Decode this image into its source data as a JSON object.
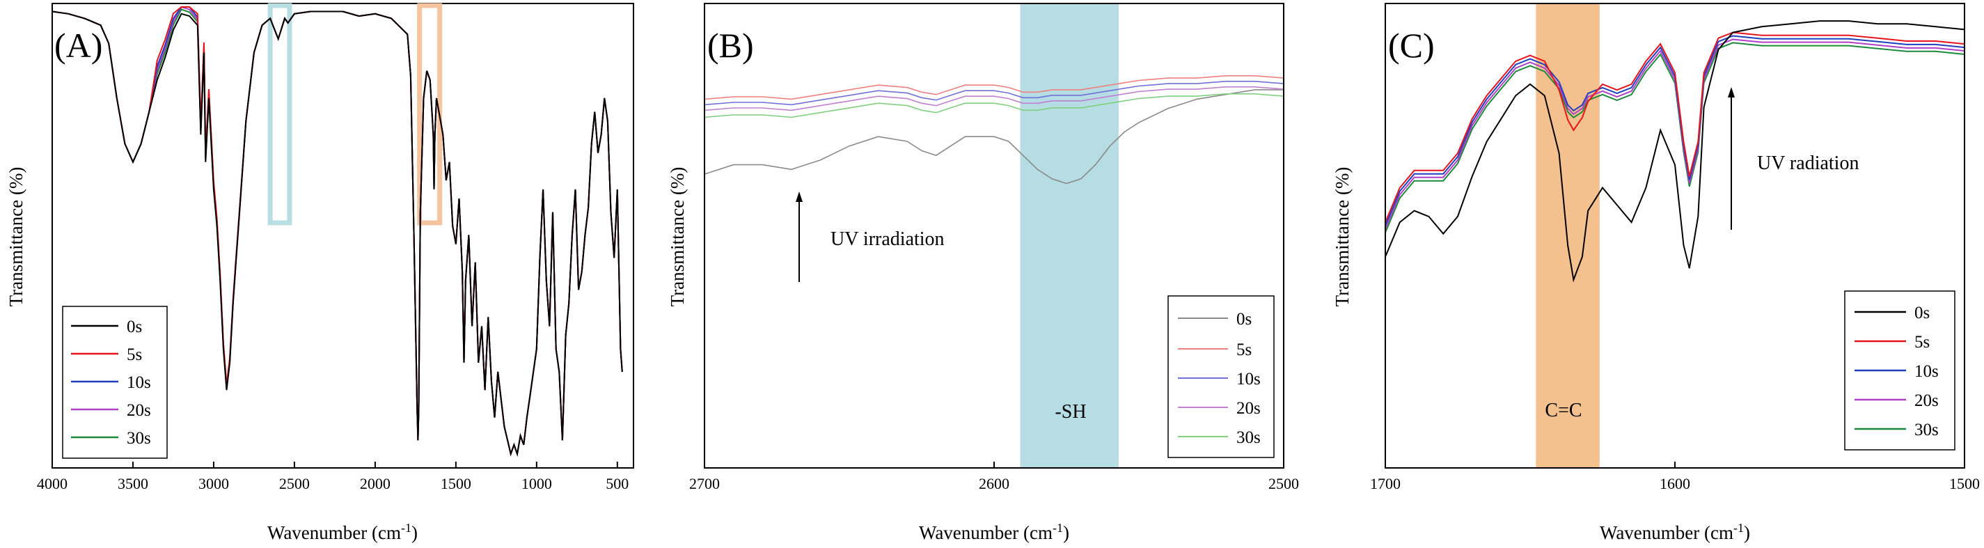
{
  "chart_data": [
    {
      "type": "line",
      "panel_label": "(A)",
      "xlabel": "Wavenumber (cm",
      "xlabel_sup": "-1",
      "xlabel_close": ")",
      "ylabel": "Transmittance (%)",
      "xlim": [
        4000,
        400
      ],
      "x_ticks": [
        4000,
        3500,
        3000,
        2500,
        2000,
        1500,
        1000,
        500
      ],
      "y_ticks_shown": false,
      "legend_position": "bottom-left",
      "highlight_boxes": [
        {
          "name": "-SH region",
          "x_from": 2650,
          "x_to": 2530,
          "color": "#b8dde3"
        },
        {
          "name": "C=C region",
          "x_from": 1725,
          "x_to": 1600,
          "color": "#f5c59f"
        }
      ],
      "series": [
        {
          "name": "0s",
          "color": "#000000",
          "offset": 0
        },
        {
          "name": "5s",
          "color": "#e8141c",
          "offset": 0.05
        },
        {
          "name": "10s",
          "color": "#1f3fbf",
          "offset": 0.035
        },
        {
          "name": "20s",
          "color": "#b040c8",
          "offset": 0.025
        },
        {
          "name": "30s",
          "color": "#1e8a3c",
          "offset": 0.015
        }
      ],
      "profile": {
        "x": [
          4000,
          3900,
          3800,
          3700,
          3650,
          3600,
          3550,
          3500,
          3450,
          3400,
          3350,
          3300,
          3250,
          3200,
          3150,
          3100,
          3080,
          3060,
          3050,
          3030,
          3000,
          2980,
          2960,
          2940,
          2920,
          2900,
          2880,
          2860,
          2840,
          2800,
          2750,
          2700,
          2650,
          2600,
          2560,
          2540,
          2500,
          2400,
          2300,
          2200,
          2100,
          2000,
          1900,
          1800,
          1780,
          1760,
          1740,
          1735,
          1730,
          1720,
          1700,
          1680,
          1660,
          1640,
          1635,
          1630,
          1620,
          1600,
          1580,
          1560,
          1540,
          1520,
          1500,
          1480,
          1460,
          1450,
          1440,
          1420,
          1400,
          1380,
          1360,
          1340,
          1320,
          1300,
          1280,
          1260,
          1240,
          1220,
          1200,
          1180,
          1160,
          1140,
          1120,
          1100,
          1080,
          1060,
          1040,
          1020,
          1000,
          980,
          960,
          940,
          920,
          900,
          880,
          860,
          840,
          820,
          800,
          780,
          760,
          740,
          720,
          700,
          680,
          660,
          640,
          620,
          600,
          580,
          560,
          540,
          520,
          500,
          480,
          470
        ],
        "y": [
          0.99,
          0.985,
          0.975,
          0.96,
          0.92,
          0.8,
          0.7,
          0.66,
          0.7,
          0.77,
          0.84,
          0.89,
          0.95,
          0.985,
          0.98,
          0.96,
          0.72,
          0.9,
          0.66,
          0.8,
          0.6,
          0.52,
          0.4,
          0.25,
          0.16,
          0.22,
          0.35,
          0.45,
          0.55,
          0.75,
          0.9,
          0.96,
          0.975,
          0.93,
          0.975,
          0.965,
          0.985,
          0.99,
          0.99,
          0.99,
          0.98,
          0.985,
          0.975,
          0.94,
          0.85,
          0.5,
          0.12,
          0.05,
          0.12,
          0.55,
          0.8,
          0.86,
          0.84,
          0.72,
          0.6,
          0.72,
          0.8,
          0.76,
          0.72,
          0.62,
          0.66,
          0.52,
          0.48,
          0.58,
          0.42,
          0.22,
          0.4,
          0.5,
          0.3,
          0.44,
          0.22,
          0.3,
          0.16,
          0.32,
          0.18,
          0.1,
          0.2,
          0.14,
          0.08,
          0.05,
          0.02,
          0.04,
          0.02,
          0.06,
          0.04,
          0.1,
          0.15,
          0.2,
          0.25,
          0.45,
          0.6,
          0.4,
          0.3,
          0.55,
          0.25,
          0.2,
          0.05,
          0.28,
          0.35,
          0.5,
          0.6,
          0.38,
          0.42,
          0.5,
          0.56,
          0.7,
          0.77,
          0.68,
          0.72,
          0.8,
          0.75,
          0.55,
          0.45,
          0.6,
          0.25,
          0.2
        ]
      },
      "legend_entries": [
        "0s",
        "5s",
        "10s",
        "20s",
        "30s"
      ]
    },
    {
      "type": "line",
      "panel_label": "(B)",
      "xlabel": "Wavenumber (cm",
      "xlabel_sup": "-1",
      "xlabel_close": ")",
      "ylabel": "Transmittance (%)",
      "xlim": [
        2700,
        2500
      ],
      "x_ticks": [
        2700,
        2600,
        2500
      ],
      "legend_position": "bottom-right",
      "band": {
        "label": "-SH",
        "x_from": 2591,
        "x_to": 2557,
        "color": "#b5dde3"
      },
      "annotation": "UV irradiation",
      "series": [
        {
          "name": "0s",
          "color": "#8a8a8a",
          "dy": 0
        },
        {
          "name": "5s",
          "color": "#f08080",
          "dy": -0.55
        },
        {
          "name": "10s",
          "color": "#7070d8",
          "dy": -0.52
        },
        {
          "name": "20s",
          "color": "#c080d0",
          "dy": -0.5
        },
        {
          "name": "30s",
          "color": "#80d080",
          "dy": -0.47
        }
      ],
      "profile_0s": {
        "x": [
          2700,
          2690,
          2680,
          2670,
          2660,
          2650,
          2640,
          2630,
          2625,
          2620,
          2615,
          2610,
          2600,
          2595,
          2590,
          2585,
          2580,
          2575,
          2570,
          2565,
          2560,
          2555,
          2550,
          2540,
          2530,
          2520,
          2510,
          2500
        ],
        "y": [
          0.62,
          0.64,
          0.64,
          0.63,
          0.65,
          0.68,
          0.7,
          0.69,
          0.67,
          0.66,
          0.68,
          0.7,
          0.7,
          0.69,
          0.66,
          0.63,
          0.61,
          0.6,
          0.61,
          0.64,
          0.68,
          0.71,
          0.73,
          0.76,
          0.78,
          0.79,
          0.8,
          0.8
        ]
      },
      "profile_uv": {
        "x": [
          2700,
          2690,
          2680,
          2670,
          2660,
          2650,
          2640,
          2630,
          2625,
          2620,
          2615,
          2610,
          2600,
          2595,
          2590,
          2585,
          2580,
          2575,
          2570,
          2565,
          2560,
          2555,
          2550,
          2540,
          2530,
          2520,
          2510,
          2500
        ],
        "y": [
          0.78,
          0.785,
          0.785,
          0.78,
          0.79,
          0.8,
          0.81,
          0.805,
          0.795,
          0.79,
          0.8,
          0.81,
          0.81,
          0.805,
          0.795,
          0.795,
          0.8,
          0.8,
          0.8,
          0.805,
          0.81,
          0.815,
          0.82,
          0.825,
          0.825,
          0.83,
          0.83,
          0.825
        ]
      },
      "legend_entries": [
        "0s",
        "5s",
        "10s",
        "20s",
        "30s"
      ]
    },
    {
      "type": "line",
      "panel_label": "(C)",
      "xlabel": "Wavenumber (cm",
      "xlabel_sup": "-1",
      "xlabel_close": ")",
      "ylabel": "Transmittance (%)",
      "xlim": [
        1700,
        1500
      ],
      "x_ticks": [
        1700,
        1600,
        1500
      ],
      "legend_position": "bottom-right",
      "band": {
        "label": "C=C",
        "x_from": 1648,
        "x_to": 1626,
        "color": "#f4c08e"
      },
      "annotation": "UV radiation",
      "series": [
        {
          "name": "0s",
          "color": "#000000"
        },
        {
          "name": "5s",
          "color": "#e8141c"
        },
        {
          "name": "10s",
          "color": "#1f3fbf"
        },
        {
          "name": "20s",
          "color": "#b040c8"
        },
        {
          "name": "30s",
          "color": "#1e8a3c"
        }
      ],
      "profile_0s": {
        "x": [
          1700,
          1695,
          1690,
          1685,
          1680,
          1675,
          1670,
          1665,
          1660,
          1655,
          1650,
          1645,
          1640,
          1637,
          1635,
          1632,
          1630,
          1625,
          1620,
          1615,
          1610,
          1605,
          1600,
          1597,
          1595,
          1592,
          1590,
          1585,
          1580,
          1570,
          1560,
          1550,
          1540,
          1530,
          1520,
          1510,
          1500
        ],
        "y": [
          0.58,
          0.64,
          0.66,
          0.65,
          0.62,
          0.65,
          0.72,
          0.78,
          0.82,
          0.86,
          0.88,
          0.86,
          0.76,
          0.6,
          0.54,
          0.58,
          0.66,
          0.7,
          0.67,
          0.64,
          0.7,
          0.8,
          0.74,
          0.6,
          0.56,
          0.65,
          0.84,
          0.94,
          0.97,
          0.98,
          0.985,
          0.99,
          0.99,
          0.985,
          0.985,
          0.98,
          0.975
        ]
      },
      "profile_uv": {
        "x": [
          1700,
          1695,
          1690,
          1685,
          1680,
          1675,
          1670,
          1665,
          1660,
          1655,
          1650,
          1645,
          1640,
          1637,
          1635,
          1632,
          1630,
          1625,
          1620,
          1615,
          1610,
          1605,
          1600,
          1597,
          1595,
          1592,
          1590,
          1585,
          1580,
          1570,
          1560,
          1550,
          1540,
          1530,
          1520,
          1510,
          1500
        ],
        "y": [
          0.64,
          0.7,
          0.73,
          0.73,
          0.73,
          0.76,
          0.82,
          0.86,
          0.89,
          0.92,
          0.93,
          0.92,
          0.89,
          0.85,
          0.84,
          0.85,
          0.87,
          0.88,
          0.87,
          0.88,
          0.92,
          0.95,
          0.9,
          0.78,
          0.72,
          0.78,
          0.9,
          0.96,
          0.97,
          0.965,
          0.965,
          0.965,
          0.965,
          0.96,
          0.955,
          0.955,
          0.95
        ]
      },
      "uv_series_shifts": [
        0,
        0.006,
        0.012,
        0.018
      ],
      "dip_depth_5s": 0.04,
      "legend_entries": [
        "0s",
        "5s",
        "10s",
        "20s",
        "30s"
      ]
    }
  ]
}
